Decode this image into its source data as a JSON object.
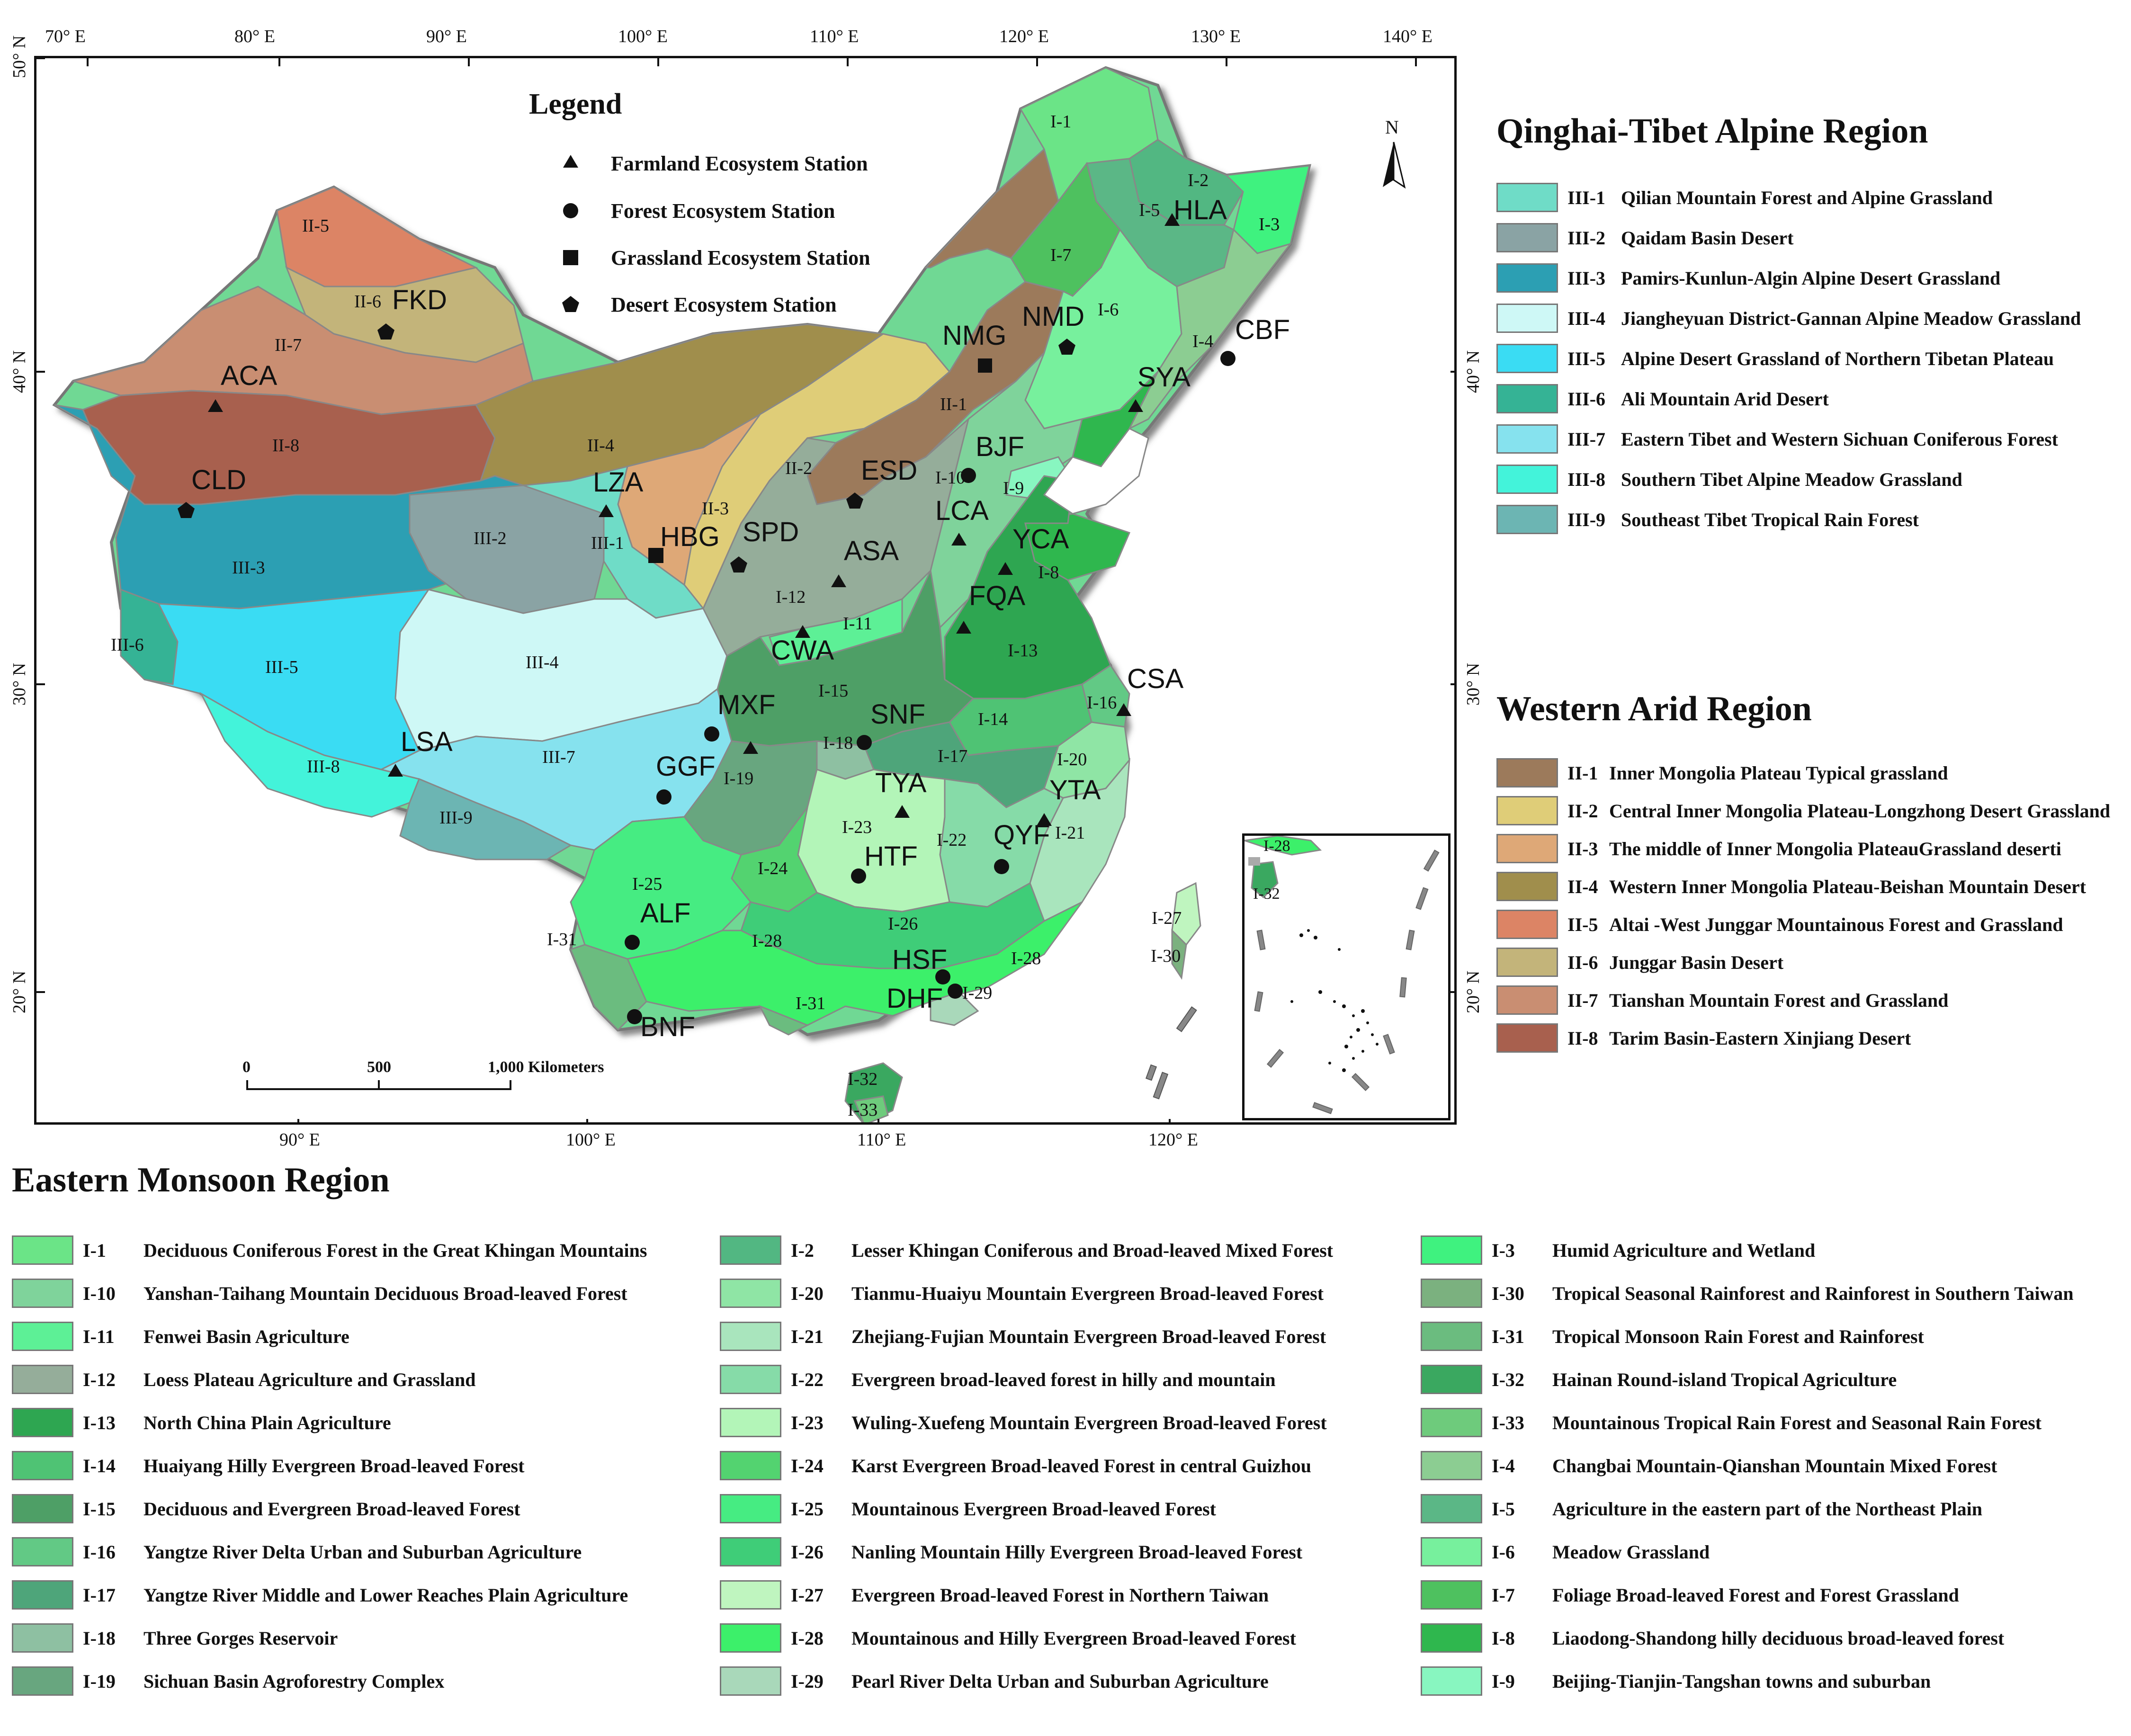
{
  "map_title_legend": "Legend",
  "station_types": [
    {
      "symbol": "triangle",
      "label": "Farmland Ecosystem Station"
    },
    {
      "symbol": "circle",
      "label": "Forest Ecosystem Station"
    },
    {
      "symbol": "square",
      "label": "Grassland Ecosystem Station"
    },
    {
      "symbol": "pentagon",
      "label": "Desert Ecosystem Station"
    }
  ],
  "graticule": {
    "top_longitude_labels": [
      "70° E",
      "80° E",
      "90° E",
      "100° E",
      "110° E",
      "120° E",
      "130° E",
      "140° E"
    ],
    "bottom_longitude_labels": [
      "90° E",
      "100° E",
      "110° E",
      "120° E"
    ],
    "left_latitude_labels": [
      "50° N",
      "40° N",
      "30° N",
      "20° N"
    ],
    "right_latitude_labels": [
      "40° N",
      "30° N",
      "20° N"
    ]
  },
  "scale_bar": {
    "ticks": [
      "0",
      "500"
    ],
    "end_label": "1,000 Kilometers"
  },
  "north_arrow": "N",
  "stations": [
    {
      "code": "HLA",
      "type": "triangle"
    },
    {
      "code": "CBF",
      "type": "circle"
    },
    {
      "code": "SYA",
      "type": "triangle"
    },
    {
      "code": "NMD",
      "type": "pentagon"
    },
    {
      "code": "NMG",
      "type": "square"
    },
    {
      "code": "FKD",
      "type": "pentagon"
    },
    {
      "code": "ACA",
      "type": "triangle"
    },
    {
      "code": "CLD",
      "type": "pentagon"
    },
    {
      "code": "LZA",
      "type": "triangle"
    },
    {
      "code": "HBG",
      "type": "square"
    },
    {
      "code": "SPD",
      "type": "pentagon"
    },
    {
      "code": "ESD",
      "type": "pentagon"
    },
    {
      "code": "BJF",
      "type": "circle"
    },
    {
      "code": "LCA",
      "type": "triangle"
    },
    {
      "code": "YCA",
      "type": "triangle"
    },
    {
      "code": "ASA",
      "type": "triangle"
    },
    {
      "code": "FQA",
      "type": "triangle"
    },
    {
      "code": "CWA",
      "type": "triangle"
    },
    {
      "code": "CSA",
      "type": "triangle"
    },
    {
      "code": "MXF",
      "type": "circle"
    },
    {
      "code": "SNF",
      "type": "circle"
    },
    {
      "code": "LSA",
      "type": "triangle"
    },
    {
      "code": "GGF",
      "type": "circle"
    },
    {
      "code": "TYA",
      "type": "triangle"
    },
    {
      "code": "YTA",
      "type": "triangle"
    },
    {
      "code": "QYF",
      "type": "circle"
    },
    {
      "code": "HTF",
      "type": "circle"
    },
    {
      "code": "ALF",
      "type": "circle"
    },
    {
      "code": "HSF",
      "type": "circle"
    },
    {
      "code": "DHF",
      "type": "circle"
    },
    {
      "code": "BNF",
      "type": "circle"
    }
  ],
  "zone_labels": [
    "I-1",
    "I-2",
    "I-3",
    "I-4",
    "I-5",
    "I-6",
    "I-7",
    "I-8",
    "I-9",
    "I-10",
    "I-11",
    "I-12",
    "I-13",
    "I-14",
    "I-15",
    "I-16",
    "I-17",
    "I-18",
    "I-19",
    "I-20",
    "I-21",
    "I-22",
    "I-23",
    "I-24",
    "I-25",
    "I-26",
    "I-27",
    "I-28",
    "I-29",
    "I-30",
    "I-31",
    "I-32",
    "I-33",
    "II-1",
    "II-2",
    "II-3",
    "II-4",
    "II-5",
    "II-6",
    "II-7",
    "II-8",
    "III-1",
    "III-2",
    "III-3",
    "III-4",
    "III-5",
    "III-6",
    "III-7",
    "III-8",
    "III-9"
  ],
  "inset_labels": [
    "I-28",
    "I-32"
  ],
  "qinghai_tibet": {
    "title": "Qinghai-Tibet Alpine Region",
    "items": [
      {
        "code": "III-1",
        "name": "Qilian Mountain Forest and Alpine Grassland",
        "color": "#6fdcc7"
      },
      {
        "code": "III-2",
        "name": "Qaidam Basin Desert",
        "color": "#8aa3a4"
      },
      {
        "code": "III-3",
        "name": "Pamirs-Kunlun-Algin Alpine Desert Grassland",
        "color": "#2c9fb3"
      },
      {
        "code": "III-4",
        "name": "Jiangheyuan District-Gannan Alpine Meadow Grassland",
        "color": "#cef8f6"
      },
      {
        "code": "III-5",
        "name": "Alpine Desert Grassland of Northern Tibetan Plateau",
        "color": "#3adcf3"
      },
      {
        "code": "III-6",
        "name": "Ali Mountain Arid Desert",
        "color": "#35b395"
      },
      {
        "code": "III-7",
        "name": "Eastern Tibet and Western Sichuan Coniferous Forest",
        "color": "#86e2ee"
      },
      {
        "code": "III-8",
        "name": "Southern Tibet Alpine Meadow Grassland",
        "color": "#43f3da"
      },
      {
        "code": "III-9",
        "name": "Southeast Tibet Tropical Rain Forest",
        "color": "#6cb5b3"
      }
    ]
  },
  "western_arid": {
    "title": "Western Arid Region",
    "items": [
      {
        "code": "II-1",
        "name": "Inner Mongolia Plateau Typical grassland",
        "color": "#9c7a5b"
      },
      {
        "code": "II-2",
        "name": "Central Inner Mongolia Plateau-Longzhong Desert Grassland",
        "color": "#dfcd78"
      },
      {
        "code": "II-3",
        "name": "The middle of Inner Mongolia PlateauGrassland deserti",
        "color": "#dea877"
      },
      {
        "code": "II-4",
        "name": "Western Inner Mongolia Plateau-Beishan Mountain Desert",
        "color": "#a08e4c"
      },
      {
        "code": "II-5",
        "name": "Altai -West Junggar Mountainous Forest and Grassland",
        "color": "#dc8465"
      },
      {
        "code": "II-6",
        "name": "Junggar Basin Desert",
        "color": "#c3b47a"
      },
      {
        "code": "II-7",
        "name": "Tianshan Mountain Forest and Grassland",
        "color": "#c98e72"
      },
      {
        "code": "II-8",
        "name": "Tarim Basin-Eastern Xinjiang Desert",
        "color": "#a8604e"
      }
    ]
  },
  "eastern_monsoon": {
    "title": "Eastern Monsoon Region",
    "columns": [
      [
        {
          "code": "I-1",
          "name": "Deciduous Coniferous Forest in the Great Khingan Mountains",
          "color": "#6be487"
        },
        {
          "code": "I-10",
          "name": "Yanshan-Taihang Mountain Deciduous Broad-leaved Forest",
          "color": "#7fd39b"
        },
        {
          "code": "I-11",
          "name": "Fenwei Basin Agriculture",
          "color": "#5df096"
        },
        {
          "code": "I-12",
          "name": "Loess Plateau Agriculture and Grassland",
          "color": "#95ad9a"
        },
        {
          "code": "I-13",
          "name": "North China Plain Agriculture",
          "color": "#2ea651"
        },
        {
          "code": "I-14",
          "name": "Huaiyang Hilly Evergreen Broad-leaved Forest",
          "color": "#4fc374"
        },
        {
          "code": "I-15",
          "name": "Deciduous and Evergreen Broad-leaved Forest",
          "color": "#4e9f66"
        },
        {
          "code": "I-16",
          "name": "Yangtze River Delta Urban and Suburban Agriculture",
          "color": "#62c985"
        },
        {
          "code": "I-17",
          "name": "Yangtze River Middle and Lower Reaches Plain Agriculture",
          "color": "#4ea57a"
        },
        {
          "code": "I-18",
          "name": "Three Gorges Reservoir",
          "color": "#8ec0a2"
        },
        {
          "code": "I-19",
          "name": "Sichuan Basin Agroforestry Complex",
          "color": "#68a67f"
        }
      ],
      [
        {
          "code": "I-2",
          "name": "Lesser Khingan Coniferous and Broad-leaved Mixed Forest",
          "color": "#52b782"
        },
        {
          "code": "I-20",
          "name": "Tianmu-Huaiyu Mountain Evergreen Broad-leaved Forest",
          "color": "#8fe5a5"
        },
        {
          "code": "I-21",
          "name": "Zhejiang-Fujian Mountain Evergreen Broad-leaved Forest",
          "color": "#a9e5bd"
        },
        {
          "code": "I-22",
          "name": "Evergreen broad-leaved forest in hilly and mountain",
          "color": "#86dba8"
        },
        {
          "code": "I-23",
          "name": "Wuling-Xuefeng Mountain Evergreen Broad-leaved Forest",
          "color": "#b3f5b8"
        },
        {
          "code": "I-24",
          "name": "Karst Evergreen Broad-leaved Forest in central Guizhou",
          "color": "#53d370"
        },
        {
          "code": "I-25",
          "name": "Mountainous Evergreen Broad-leaved Forest",
          "color": "#46ec82"
        },
        {
          "code": "I-26",
          "name": "Nanling Mountain Hilly Evergreen Broad-leaved Forest",
          "color": "#3fcd78"
        },
        {
          "code": "I-27",
          "name": "Evergreen Broad-leaved Forest in Northern Taiwan",
          "color": "#bff5bf"
        },
        {
          "code": "I-28",
          "name": "Mountainous and Hilly Evergreen Broad-leaved Forest",
          "color": "#3cf06a"
        },
        {
          "code": "I-29",
          "name": "Pearl River Delta Urban and Suburban Agriculture",
          "color": "#a9d8ba"
        }
      ],
      [
        {
          "code": "I-3",
          "name": "Humid Agriculture and Wetland",
          "color": "#3ff27f"
        },
        {
          "code": "I-30",
          "name": "Tropical Seasonal Rainforest and Rainforest in Southern Taiwan",
          "color": "#7bb17f"
        },
        {
          "code": "I-31",
          "name": "Tropical Monsoon Rain Forest and Rainforest",
          "color": "#6bbc7f"
        },
        {
          "code": "I-32",
          "name": "Hainan Round-island Tropical Agriculture",
          "color": "#3aa860"
        },
        {
          "code": "I-33",
          "name": "Mountainous Tropical Rain Forest and Seasonal Rain Forest",
          "color": "#6ecb7c"
        },
        {
          "code": "I-4",
          "name": "Changbai Mountain-Qianshan Mountain Mixed Forest",
          "color": "#8ccd92"
        },
        {
          "code": "I-5",
          "name": "Agriculture in the eastern part of the Northeast Plain",
          "color": "#5bb786"
        },
        {
          "code": "I-6",
          "name": "Meadow Grassland",
          "color": "#77f09d"
        },
        {
          "code": "I-7",
          "name": "Foliage Broad-leaved Forest and Forest Grassland",
          "color": "#4ec15f"
        },
        {
          "code": "I-8",
          "name": "Liaodong-Shandong hilly deciduous broad-leaved forest",
          "color": "#2fb74e"
        },
        {
          "code": "I-9",
          "name": "Beijing-Tianjin-Tangshan towns and suburban",
          "color": "#88f6c0"
        }
      ]
    ]
  }
}
